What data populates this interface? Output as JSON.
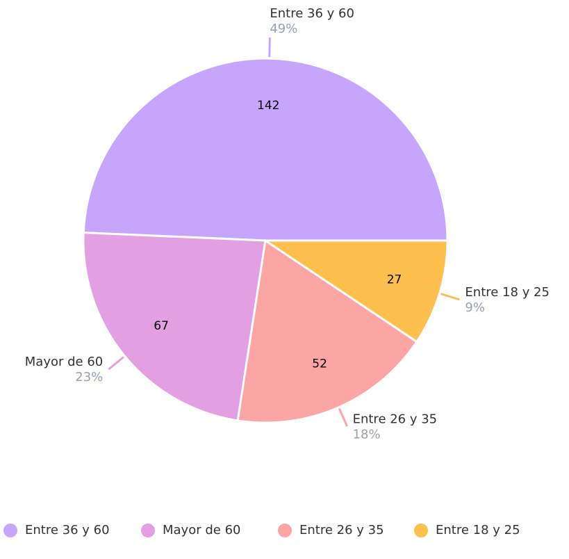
{
  "chart_data": {
    "type": "pie",
    "categories": [
      "Entre 36 y 60",
      "Mayor de 60",
      "Entre 26 y 35",
      "Entre 18 y 25"
    ],
    "values": [
      142,
      67,
      52,
      27
    ],
    "percent_labels": [
      "49%",
      "23%",
      "18%",
      "9%"
    ],
    "colors": [
      "#c5a6fc",
      "#e2a0e2",
      "#fca5a5",
      "#fdc04f"
    ],
    "legend": "bottom"
  }
}
